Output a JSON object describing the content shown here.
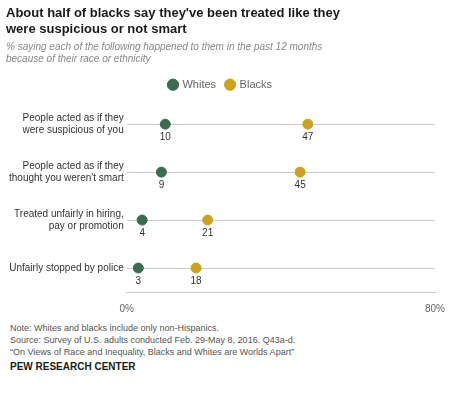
{
  "chart_data": {
    "type": "dot",
    "orientation": "horizontal",
    "title": "About half of blacks say they've been treated like they\nwere suspicious or not smart",
    "subtitle": "% saying each of the following happened to them in the past 12 months\nbecause of their race or ethnicity",
    "categories": [
      "People acted as if they\nwere suspicious of you",
      "People acted as if they\nthought you weren't smart",
      "Treated unfairly in hiring,\npay or promotion",
      "Unfairly stopped by police"
    ],
    "series": [
      {
        "name": "Whites",
        "color": "#3d6b52",
        "marker": "circle",
        "values": [
          10,
          9,
          4,
          3
        ]
      },
      {
        "name": "Blacks",
        "color": "#c9a227",
        "marker": "circle",
        "values": [
          47,
          45,
          21,
          18
        ]
      }
    ],
    "xlim": [
      0,
      80
    ],
    "xticks": [
      {
        "value": 0,
        "label": "0%"
      },
      {
        "value": 80,
        "label": "80%"
      }
    ],
    "grid": true,
    "legend": "top",
    "data_labels": true,
    "annotations": [
      "Note: Whites and blacks include only non-Hispanics.",
      "Source: Survey of U.S. adults conducted Feb. 29-May 8, 2016. Q43a-d.",
      "“On Views of Race and Inequality, Blacks and Whites are Worlds Apart”",
      "PEW RESEARCH CENTER"
    ]
  }
}
